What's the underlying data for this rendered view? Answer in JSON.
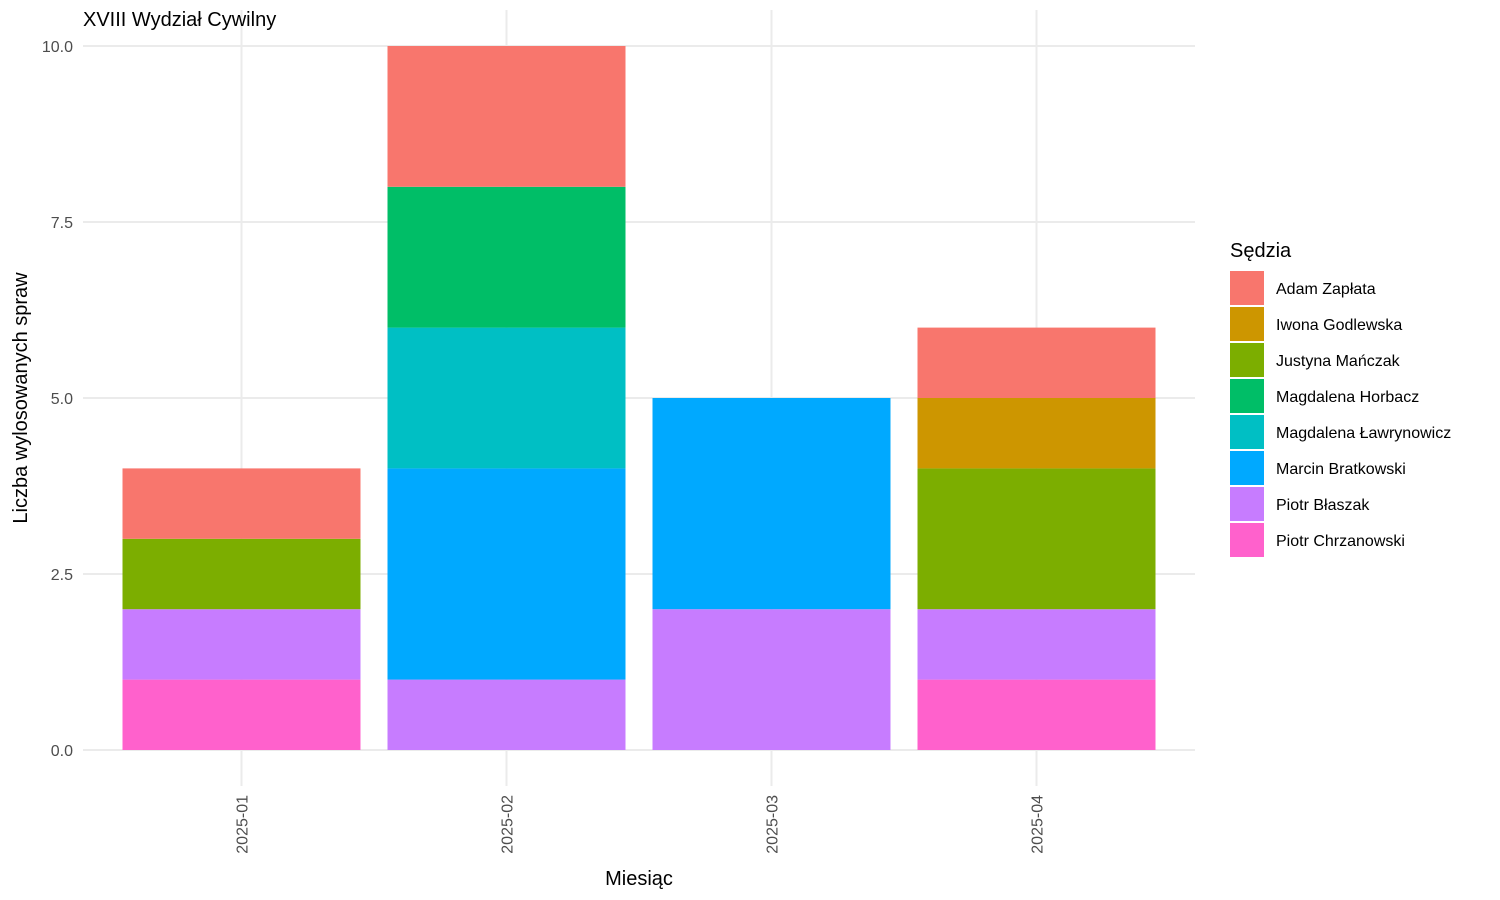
{
  "chart_data": {
    "type": "bar",
    "stacked": true,
    "title": "XVIII Wydział Cywilny",
    "xlabel": "Miesiąc",
    "ylabel": "Liczba wylosowanych spraw",
    "categories": [
      "2025-01",
      "2025-02",
      "2025-03",
      "2025-04"
    ],
    "ylim": [
      0,
      10
    ],
    "yticks": [
      0,
      2.5,
      5,
      7.5,
      10
    ],
    "ytick_labels": [
      "0.0",
      "2.5",
      "5.0",
      "7.5",
      "10.0"
    ],
    "grid": true,
    "legend": {
      "title": "Sędzia",
      "position": "right"
    },
    "series": [
      {
        "name": "Adam Zapłata",
        "color": "#F8766D",
        "values": [
          1,
          2,
          0,
          1
        ]
      },
      {
        "name": "Iwona Godlewska",
        "color": "#CD9600",
        "values": [
          0,
          0,
          0,
          1
        ]
      },
      {
        "name": "Justyna Mańczak",
        "color": "#7CAE00",
        "values": [
          1,
          0,
          0,
          2
        ]
      },
      {
        "name": "Magdalena Horbacz",
        "color": "#00BE67",
        "values": [
          0,
          2,
          0,
          0
        ]
      },
      {
        "name": "Magdalena Ławrynowicz",
        "color": "#00BFC4",
        "values": [
          0,
          2,
          0,
          0
        ]
      },
      {
        "name": "Marcin Bratkowski",
        "color": "#00A9FF",
        "values": [
          0,
          3,
          3,
          0
        ]
      },
      {
        "name": "Piotr Błaszak",
        "color": "#C77CFF",
        "values": [
          1,
          1,
          2,
          1
        ]
      },
      {
        "name": "Piotr Chrzanowski",
        "color": "#FF61CC",
        "values": [
          1,
          0,
          0,
          1
        ]
      }
    ]
  }
}
